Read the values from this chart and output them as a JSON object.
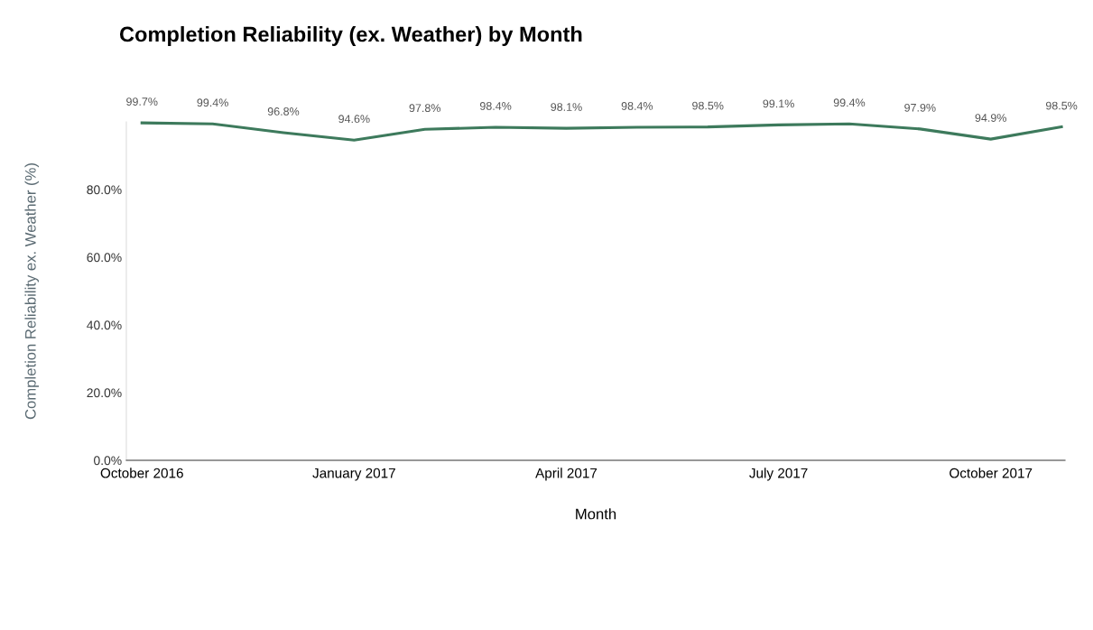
{
  "chart_data": {
    "type": "line",
    "title": "Completion Reliability (ex. Weather) by Month",
    "xlabel": "Month",
    "ylabel": "Completion Reliability ex. Weather (%)",
    "categories": [
      "October 2016",
      null,
      null,
      "January 2017",
      null,
      null,
      "April 2017",
      null,
      null,
      "July 2017",
      null,
      null,
      "October 2017",
      null
    ],
    "series": [
      {
        "color": "#3d7a5c",
        "values": [
          99.7,
          99.4,
          96.8,
          94.6,
          97.8,
          98.4,
          98.1,
          98.4,
          98.5,
          99.1,
          99.4,
          97.9,
          94.9,
          98.5
        ],
        "value_labels": [
          "99.7%",
          "99.4%",
          "96.8%",
          "94.6%",
          "97.8%",
          "98.4%",
          "98.1%",
          "98.4%",
          "98.5%",
          "99.1%",
          "99.4%",
          "97.9%",
          "94.9%",
          "98.5%"
        ]
      }
    ],
    "ylim": [
      0,
      100
    ],
    "yticks": [
      {
        "value": 0,
        "label": "0.0%"
      },
      {
        "value": 20,
        "label": "20.0%"
      },
      {
        "value": 40,
        "label": "40.0%"
      },
      {
        "value": 60,
        "label": "60.0%"
      },
      {
        "value": 80,
        "label": "80.0%"
      }
    ],
    "grid": false,
    "legend": false,
    "marker": "none",
    "line_style": "solid"
  }
}
